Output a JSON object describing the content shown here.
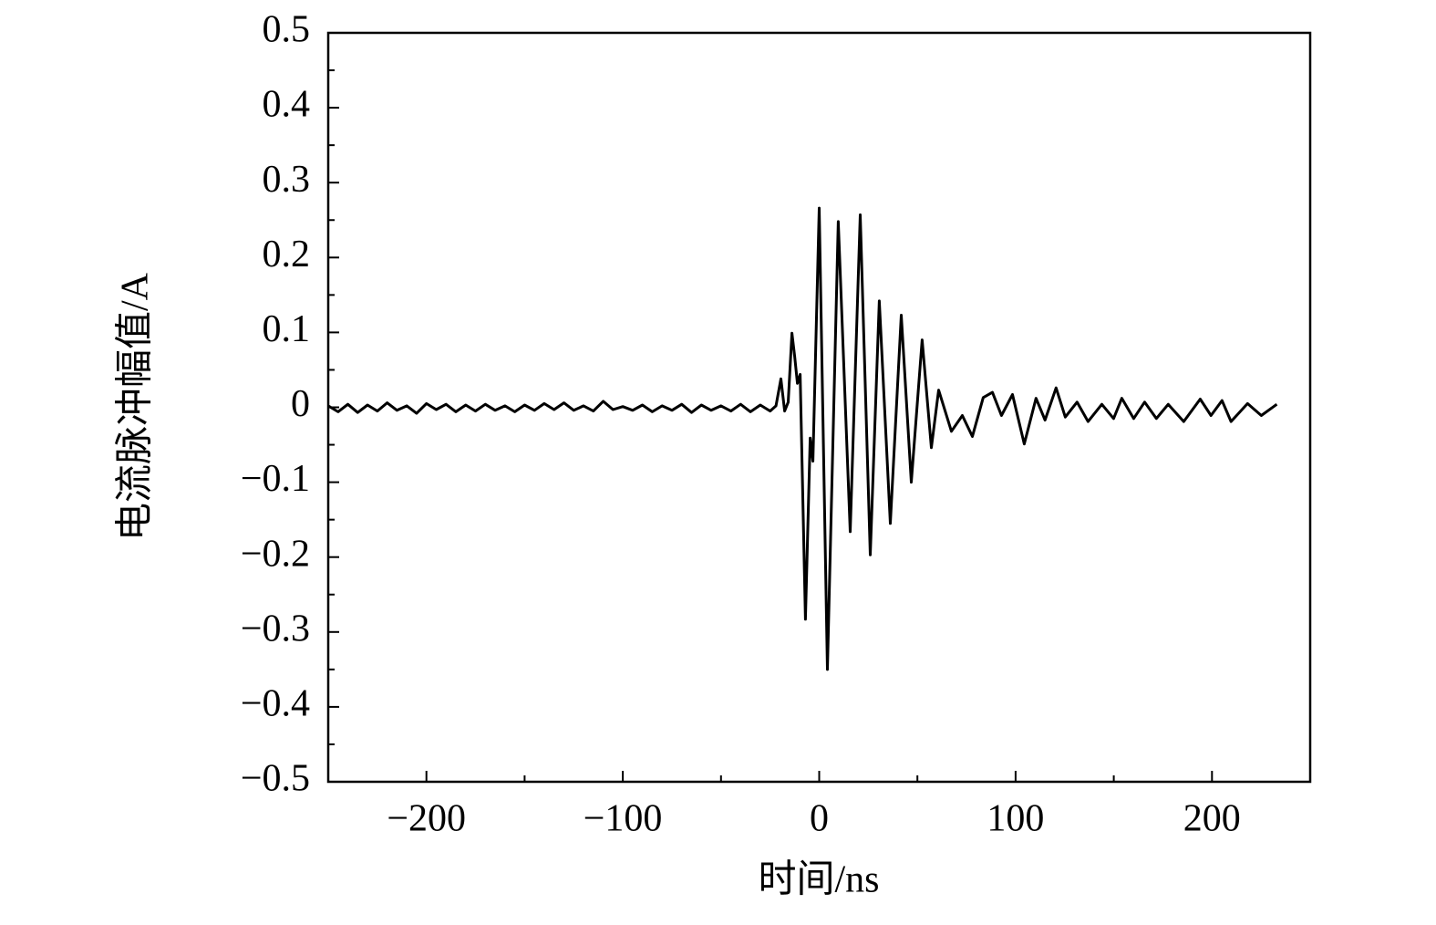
{
  "chart_data": {
    "type": "line",
    "x_label": "时间/ns",
    "y_label": "电流脉冲幅值/A",
    "xlim": [
      -250,
      250
    ],
    "ylim": [
      -0.5,
      0.5
    ],
    "xticks": [
      {
        "value": -200,
        "label": "−200"
      },
      {
        "value": -100,
        "label": "−100"
      },
      0,
      100,
      200
    ],
    "xminorticks": [
      -150,
      -50,
      50,
      150
    ],
    "yticks": [
      {
        "value": -0.5,
        "label": "−0.5"
      },
      {
        "value": -0.4,
        "label": "−0.4"
      },
      {
        "value": -0.3,
        "label": "−0.3"
      },
      {
        "value": -0.2,
        "label": "−0.2"
      },
      {
        "value": -0.1,
        "label": "−0.1"
      },
      0,
      0.1,
      0.2,
      0.3,
      0.4,
      0.5
    ],
    "yminorticks": [
      -0.45,
      -0.35,
      -0.25,
      -0.15,
      -0.05,
      0.05,
      0.15,
      0.25,
      0.35,
      0.45
    ],
    "color": "#000000",
    "x": [
      -250,
      -245,
      -240,
      -235,
      -230,
      -225,
      -220,
      -215,
      -210,
      -205,
      -200,
      -195,
      -190,
      -185,
      -180,
      -175,
      -170,
      -165,
      -160,
      -155,
      -150,
      -145,
      -140,
      -135,
      -130,
      -125,
      -120,
      -115,
      -110,
      -105,
      -100,
      -95,
      -90,
      -85,
      -80,
      -75,
      -70,
      -65,
      -60,
      -55,
      -50,
      -45,
      -40,
      -35,
      -30,
      -25,
      -22,
      -19.5,
      -17.6,
      -15.8,
      -13.9,
      -12.5,
      -11.1,
      -9.7,
      -7.0,
      -4.6,
      -3.2,
      0,
      4.2,
      9.7,
      15.8,
      20.9,
      26,
      30.6,
      36.2,
      41.8,
      46.9,
      52.4,
      57.1,
      60.8,
      67.3,
      72.9,
      78,
      83.5,
      88.2,
      92.8,
      98.4,
      104.4,
      110.4,
      115,
      120.6,
      125.3,
      131.3,
      136.9,
      143.9,
      149.9,
      154.1,
      160.1,
      165.7,
      171.7,
      177.7,
      185.6,
      194,
      199.5,
      205.1,
      209.7,
      218.1,
      225.1,
      233
    ],
    "values": [
      0.002,
      -0.006,
      0.004,
      -0.007,
      0.003,
      -0.005,
      0.006,
      -0.004,
      0.002,
      -0.008,
      0.005,
      -0.003,
      0.004,
      -0.006,
      0.003,
      -0.005,
      0.004,
      -0.004,
      0.002,
      -0.006,
      0.003,
      -0.004,
      0.005,
      -0.003,
      0.006,
      -0.004,
      0.002,
      -0.005,
      0.008,
      -0.003,
      0.001,
      -0.004,
      0.003,
      -0.006,
      0.002,
      -0.004,
      0.004,
      -0.007,
      0.003,
      -0.004,
      0.002,
      -0.005,
      0.004,
      -0.006,
      0.003,
      -0.005,
      0.002,
      0.038,
      -0.005,
      0.007,
      0.099,
      0.068,
      0.032,
      0.044,
      -0.283,
      -0.041,
      -0.072,
      0.266,
      -0.35,
      0.248,
      -0.166,
      0.257,
      -0.197,
      0.142,
      -0.155,
      0.123,
      -0.1,
      0.09,
      -0.054,
      0.023,
      -0.032,
      -0.011,
      -0.039,
      0.013,
      0.02,
      -0.011,
      0.017,
      -0.049,
      0.012,
      -0.017,
      0.026,
      -0.013,
      0.007,
      -0.019,
      0.004,
      -0.015,
      0.012,
      -0.015,
      0.007,
      -0.015,
      0.004,
      -0.019,
      0.011,
      -0.011,
      0.009,
      -0.019,
      0.005,
      -0.011,
      0.004
    ]
  }
}
